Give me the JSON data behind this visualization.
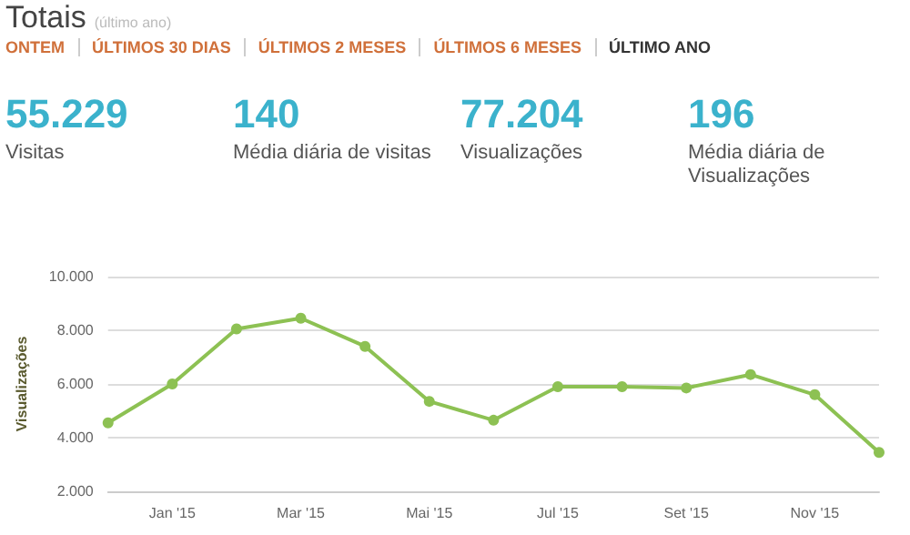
{
  "chart_data": [
    {
      "type": "other",
      "title": "Totais",
      "subtitle": "(último ano)",
      "annotations": [
        "ONTEM",
        "ÚLTIMOS 30 DIAS",
        "ÚLTIMOS 2 MESES",
        "ÚLTIMOS 6 MESES",
        "ÚLTIMO ANO",
        "55.229",
        "Visitas",
        "140",
        "Média diária de visitas",
        "77.204",
        "Visualizações",
        "196",
        "Média diária de Visualizações"
      ]
    },
    {
      "type": "line",
      "ylabel": "Visualizações",
      "categories": [
        null,
        "Jan '15",
        null,
        "Mar '15",
        null,
        "Mai '15",
        null,
        "Jul '15",
        null,
        "Set '15",
        null,
        "Nov '15",
        null
      ],
      "series": [
        {
          "color": "#8dc153",
          "values": [
            4550,
            6000,
            8050,
            8450,
            7400,
            5350,
            4650,
            5900,
            5900,
            5850,
            6350,
            5600,
            3450
          ]
        }
      ],
      "ylim": [
        2000,
        10000
      ],
      "yticks": [
        {
          "value": 2000,
          "label": "2.000"
        },
        {
          "value": 4000,
          "label": "4.000"
        },
        {
          "value": 6000,
          "label": "6.000"
        },
        {
          "value": 8000,
          "label": "8.000"
        },
        {
          "value": 10000,
          "label": "10.000"
        }
      ],
      "grid": "y",
      "marker": "circle",
      "line_style": "solid"
    }
  ]
}
